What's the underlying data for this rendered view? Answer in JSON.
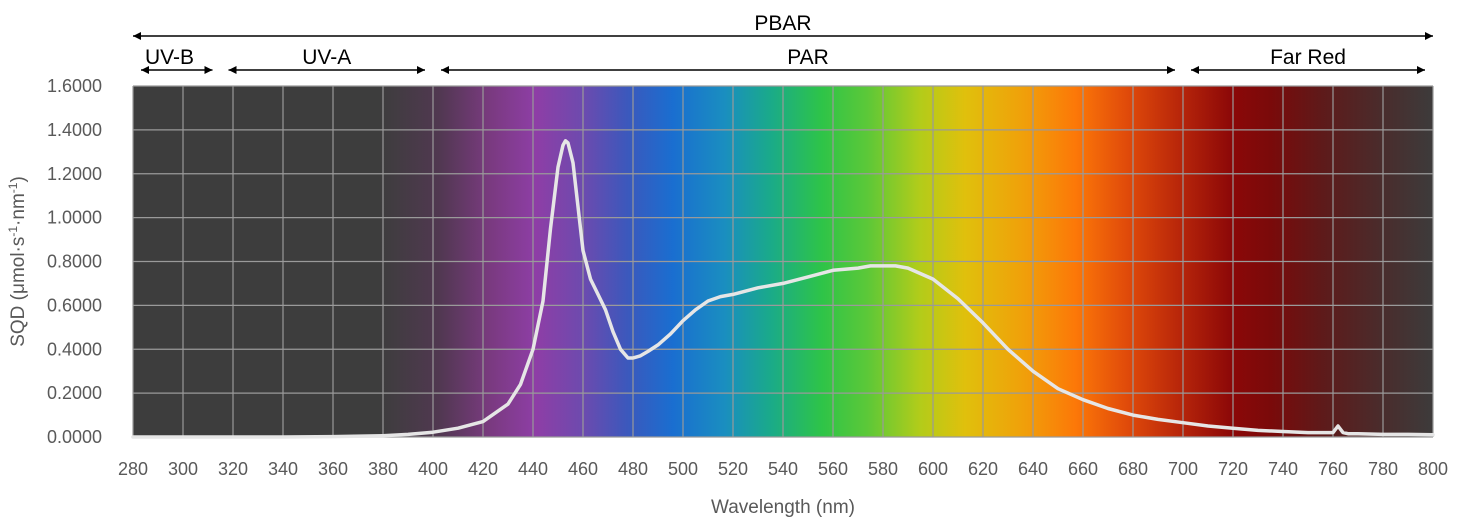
{
  "chart_data": {
    "type": "line",
    "xlabel": "Wavelength (nm)",
    "ylabel": "SQD (μmol·s⁻¹·nm⁻¹)",
    "ylabel_parts": {
      "pre": "SQD (μmol·s",
      "sup1": "-1",
      "mid": "·nm",
      "sup2": "-1",
      "post": ")"
    },
    "xlim": [
      280,
      800
    ],
    "ylim": [
      0,
      1.6
    ],
    "x_ticks": [
      "280",
      "300",
      "320",
      "340",
      "360",
      "380",
      "400",
      "420",
      "440",
      "460",
      "480",
      "500",
      "520",
      "540",
      "560",
      "580",
      "600",
      "620",
      "640",
      "660",
      "680",
      "700",
      "720",
      "740",
      "760",
      "780",
      "800"
    ],
    "y_ticks": [
      "0.0000",
      "0.2000",
      "0.4000",
      "0.6000",
      "0.8000",
      "1.0000",
      "1.2000",
      "1.4000",
      "1.6000"
    ],
    "grid": true,
    "background": "visible spectrum gradient",
    "series": [
      {
        "color": "#e6e6e6",
        "x": [
          280,
          300,
          320,
          340,
          360,
          380,
          390,
          400,
          410,
          420,
          430,
          435,
          440,
          444,
          447,
          450,
          452,
          453,
          454,
          456,
          458,
          460,
          463,
          466,
          469,
          472,
          475,
          478,
          480,
          483,
          486,
          490,
          495,
          500,
          505,
          510,
          515,
          520,
          530,
          540,
          550,
          560,
          570,
          575,
          580,
          585,
          590,
          600,
          610,
          620,
          630,
          640,
          650,
          660,
          670,
          680,
          690,
          700,
          710,
          720,
          730,
          740,
          750,
          760,
          762,
          764,
          766,
          770,
          780,
          790,
          800
        ],
        "y": [
          0.0,
          0.0,
          0.0,
          0.0,
          0.002,
          0.006,
          0.012,
          0.022,
          0.04,
          0.07,
          0.15,
          0.24,
          0.4,
          0.62,
          0.95,
          1.23,
          1.33,
          1.35,
          1.34,
          1.25,
          1.05,
          0.85,
          0.72,
          0.65,
          0.58,
          0.48,
          0.4,
          0.36,
          0.36,
          0.37,
          0.39,
          0.42,
          0.47,
          0.53,
          0.58,
          0.62,
          0.64,
          0.65,
          0.68,
          0.7,
          0.73,
          0.76,
          0.77,
          0.78,
          0.78,
          0.78,
          0.77,
          0.72,
          0.63,
          0.52,
          0.4,
          0.3,
          0.22,
          0.17,
          0.13,
          0.1,
          0.08,
          0.065,
          0.05,
          0.04,
          0.03,
          0.025,
          0.02,
          0.02,
          0.05,
          0.02,
          0.015,
          0.015,
          0.012,
          0.012,
          0.01
        ]
      }
    ],
    "bands": [
      {
        "label": "PBAR",
        "from": 280,
        "to": 800,
        "row": 0
      },
      {
        "label": "UV-B",
        "from": 280,
        "to": 315,
        "row": 1
      },
      {
        "label": "UV-A",
        "from": 315,
        "to": 400,
        "row": 1
      },
      {
        "label": "PAR",
        "from": 400,
        "to": 700,
        "row": 1
      },
      {
        "label": "Far Red",
        "from": 700,
        "to": 800,
        "row": 1
      }
    ]
  }
}
